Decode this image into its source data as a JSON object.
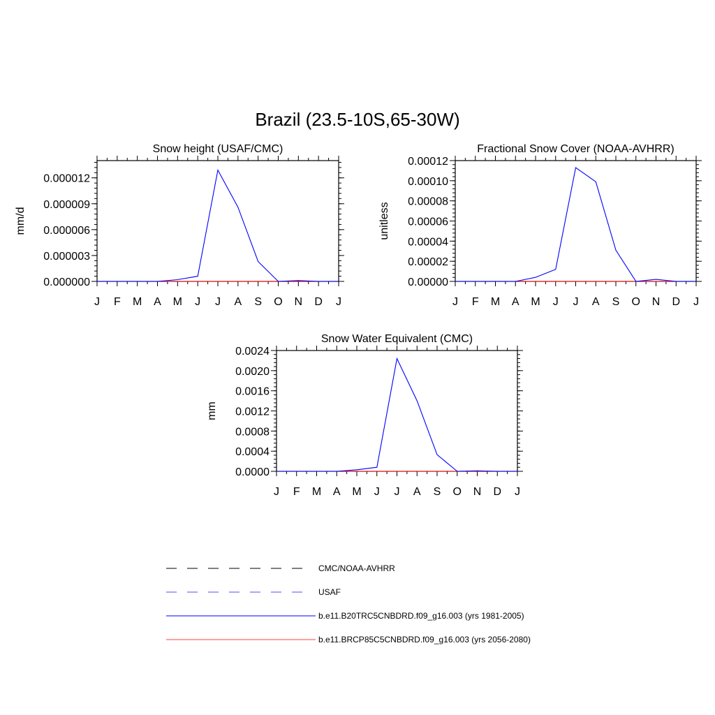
{
  "figure": {
    "title": "Brazil (23.5-10S,65-30W)"
  },
  "colors": {
    "axis": "#000000",
    "cmc_noaa": "#000000",
    "usaf": "#0000ff",
    "historical": "#0000ff",
    "future": "#ff0000"
  },
  "legend": [
    {
      "label": "CMC/NOAA-AVHRR",
      "color": "#000000",
      "style": "dashed"
    },
    {
      "label": "USAF",
      "color": "#0000ff",
      "style": "dashed"
    },
    {
      "label": "b.e11.B20TRC5CNBDRD.f09_g16.003 (yrs 1981-2005)",
      "color": "#0000ff",
      "style": "solid"
    },
    {
      "label": "b.e11.BRCP85C5CNBDRD.f09_g16.003 (yrs 2056-2080)",
      "color": "#ff0000",
      "style": "solid"
    }
  ],
  "chart_data": [
    {
      "type": "line",
      "title": "Snow height (USAF/CMC)",
      "xlabel": "",
      "ylabel": "mm/d",
      "categories": [
        "J",
        "F",
        "M",
        "A",
        "M",
        "J",
        "J",
        "A",
        "S",
        "O",
        "N",
        "D",
        "J"
      ],
      "ylim": [
        0,
        1.4e-05
      ],
      "yticks": [
        "0.000000",
        "0.000003",
        "0.000006",
        "0.000009",
        "0.000012"
      ],
      "ytick_values": [
        0,
        3e-06,
        6e-06,
        9e-06,
        1.2e-05
      ],
      "series": [
        {
          "name": "b.e11.B20TRC5CNBDRD.f09_g16.003 (yrs 1981-2005)",
          "color": "#0000ff",
          "values": [
            0,
            0,
            0,
            0,
            2e-07,
            6e-07,
            1.29e-05,
            8.6e-06,
            2.3e-06,
            0,
            1e-07,
            0,
            0
          ]
        },
        {
          "name": "b.e11.BRCP85C5CNBDRD.f09_g16.003 (yrs 2056-2080)",
          "color": "#ff0000",
          "values": [
            0,
            0,
            0,
            0,
            0,
            0,
            0,
            0,
            0,
            0,
            0,
            0,
            0
          ]
        }
      ]
    },
    {
      "type": "line",
      "title": "Fractional Snow Cover (NOAA-AVHRR)",
      "xlabel": "",
      "ylabel": "unitless",
      "categories": [
        "J",
        "F",
        "M",
        "A",
        "M",
        "J",
        "J",
        "A",
        "S",
        "O",
        "N",
        "D",
        "J"
      ],
      "ylim": [
        0,
        0.00012
      ],
      "yticks": [
        "0.00000",
        "0.00002",
        "0.00004",
        "0.00006",
        "0.00008",
        "0.00010",
        "0.00012"
      ],
      "ytick_values": [
        0,
        2e-05,
        4e-05,
        6e-05,
        8e-05,
        0.0001,
        0.00012
      ],
      "series": [
        {
          "name": "b.e11.B20TRC5CNBDRD.f09_g16.003 (yrs 1981-2005)",
          "color": "#0000ff",
          "values": [
            0,
            0,
            0,
            0,
            4e-06,
            1.2e-05,
            0.000113,
            9.9e-05,
            3.1e-05,
            0,
            2e-06,
            0,
            0
          ]
        },
        {
          "name": "b.e11.BRCP85C5CNBDRD.f09_g16.003 (yrs 2056-2080)",
          "color": "#ff0000",
          "values": [
            0,
            0,
            0,
            0,
            0,
            0,
            0,
            0,
            0,
            0,
            0,
            0,
            0
          ]
        }
      ]
    },
    {
      "type": "line",
      "title": "Snow Water Equivalent (CMC)",
      "xlabel": "",
      "ylabel": "mm",
      "categories": [
        "J",
        "F",
        "M",
        "A",
        "M",
        "J",
        "J",
        "A",
        "S",
        "O",
        "N",
        "D",
        "J"
      ],
      "ylim": [
        0,
        0.0024
      ],
      "yticks": [
        "0.0000",
        "0.0004",
        "0.0008",
        "0.0012",
        "0.0016",
        "0.0020",
        "0.0024"
      ],
      "ytick_values": [
        0,
        0.0004,
        0.0008,
        0.0012,
        0.0016,
        0.002,
        0.0024
      ],
      "series": [
        {
          "name": "b.e11.B20TRC5CNBDRD.f09_g16.003 (yrs 1981-2005)",
          "color": "#0000ff",
          "values": [
            0,
            0,
            0,
            0,
            3e-05,
            8e-05,
            0.00224,
            0.0014,
            0.00033,
            0,
            1e-05,
            0,
            0
          ]
        },
        {
          "name": "b.e11.BRCP85C5CNBDRD.f09_g16.003 (yrs 2056-2080)",
          "color": "#ff0000",
          "values": [
            0,
            0,
            0,
            0,
            0,
            0,
            0,
            0,
            0,
            0,
            0,
            0,
            0
          ]
        }
      ]
    }
  ]
}
